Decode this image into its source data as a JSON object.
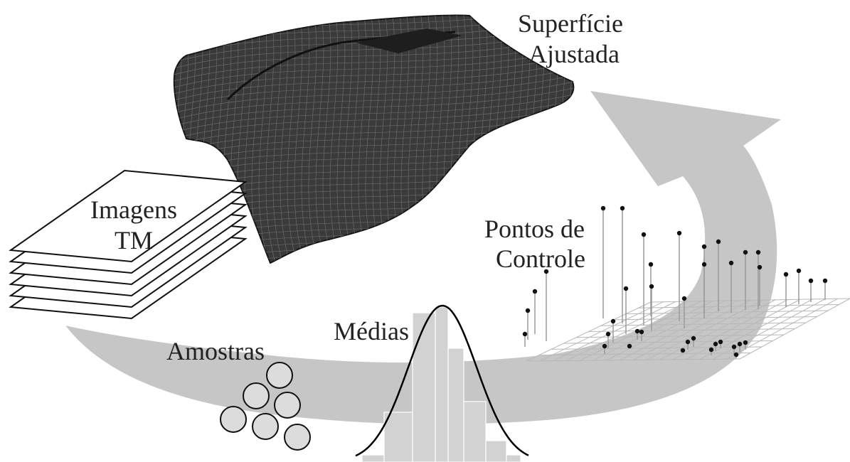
{
  "labels": {
    "surface_line1": "Superfície",
    "surface_line2": "Ajustada",
    "images_line1": "Imagens",
    "images_line2": "TM",
    "control_line1": "Pontos de",
    "control_line2": "Controle",
    "samples": "Amostras",
    "means": "Médias"
  },
  "colors": {
    "cycle_arrow": "#c6c6c6",
    "mesh_fill": "#3a3a3a",
    "mesh_line": "#161616",
    "sample_fill": "#dcdcdc",
    "histogram_fill": "#d2d2d2",
    "grid_line": "#b8b8b8",
    "stem_line": "#9a9a9a",
    "point_fill": "#111111"
  },
  "icons": [
    "fitted-surface-mesh",
    "image-stack",
    "sample-circles",
    "histogram-with-normal-curve",
    "control-point-grid",
    "cycle-arrow"
  ]
}
